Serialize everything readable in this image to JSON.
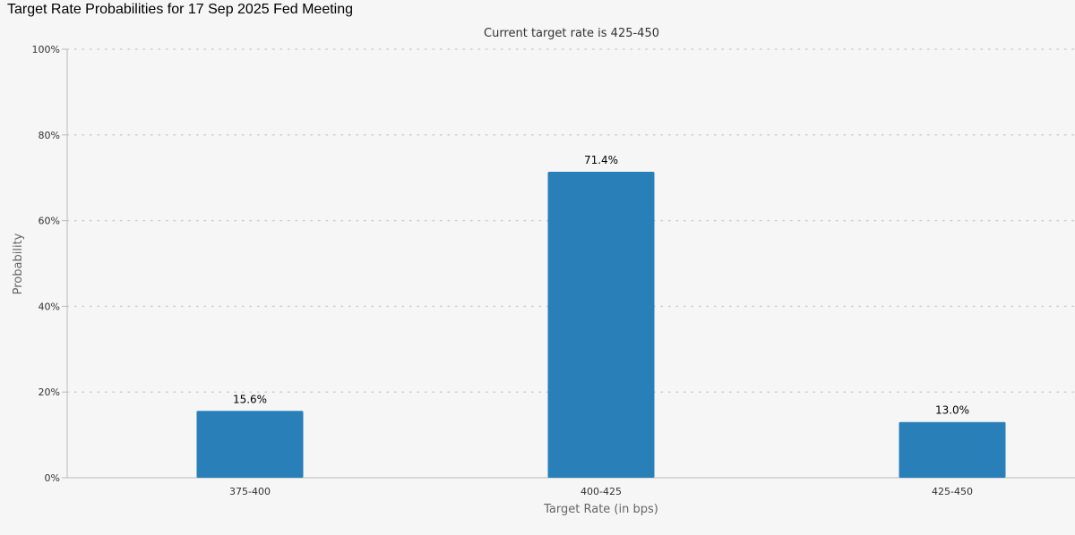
{
  "page": {
    "title": "Target Rate Probabilities for 17 Sep 2025 Fed Meeting"
  },
  "chart_data": {
    "type": "bar",
    "subtitle": "Current target rate is 425-450",
    "xlabel": "Target Rate (in bps)",
    "ylabel": "Probability",
    "categories": [
      "375-400",
      "400-425",
      "425-450"
    ],
    "values": [
      15.6,
      71.4,
      13.0
    ],
    "data_labels": [
      "15.6%",
      "71.4%",
      "13.0%"
    ],
    "ylim": [
      0,
      100
    ],
    "yticks": [
      0,
      20,
      40,
      60,
      80,
      100
    ],
    "ytick_labels": [
      "0%",
      "20%",
      "40%",
      "60%",
      "80%",
      "100%"
    ],
    "grid": true,
    "legend": "none",
    "bar_color": "#2980b9"
  }
}
